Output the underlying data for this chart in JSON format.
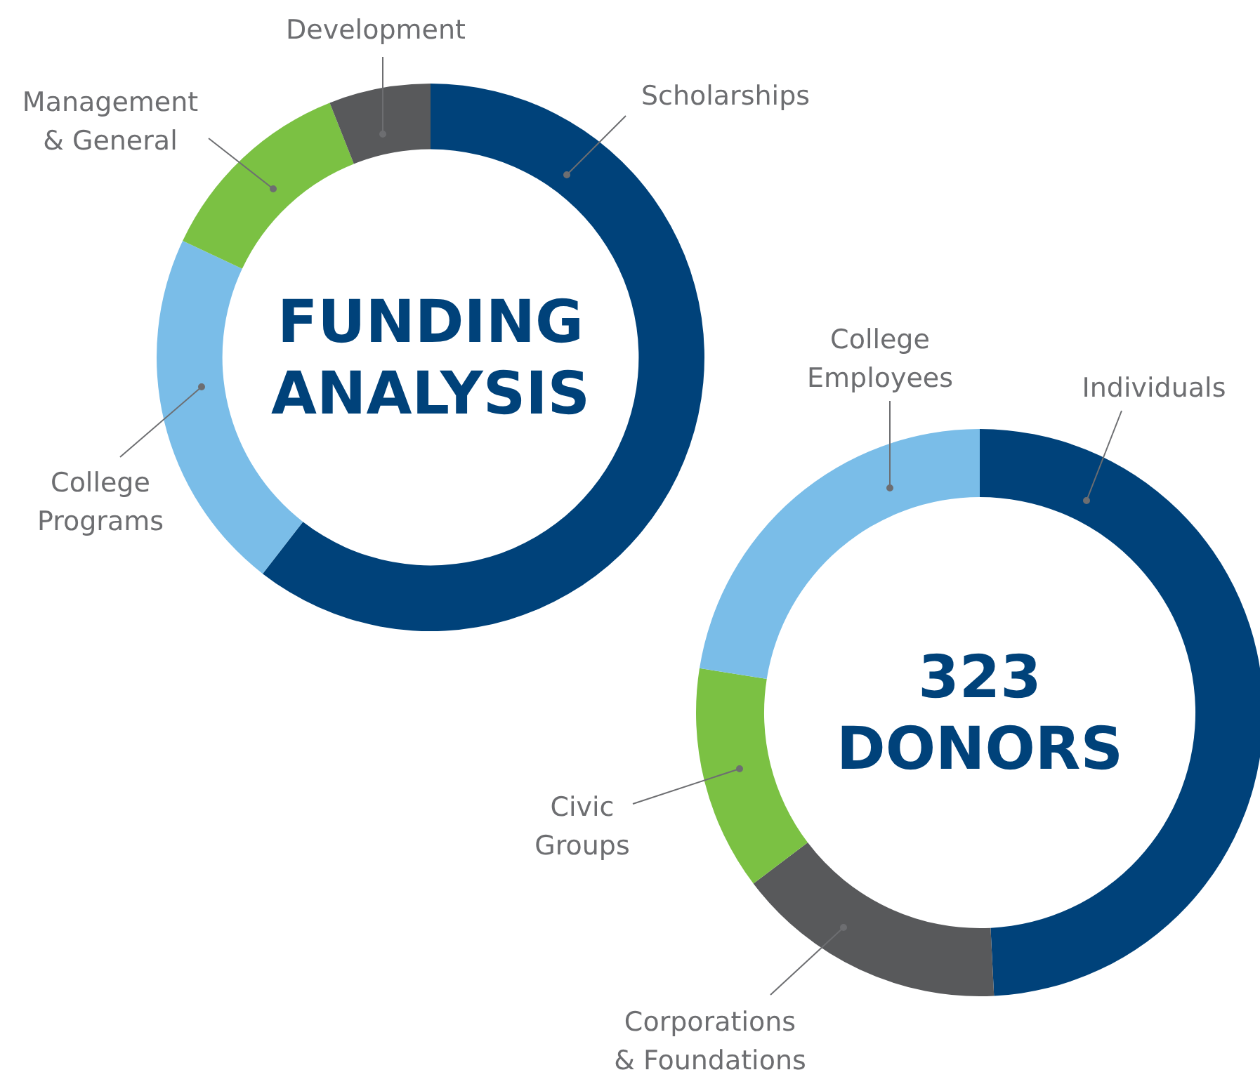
{
  "chart_data": [
    {
      "type": "donut",
      "title": "FUNDING ANALYSIS",
      "categories": [
        "Scholarships",
        "College Programs",
        "Management & General",
        "Development"
      ],
      "values": [
        60.5,
        21.5,
        12,
        6
      ],
      "colors": [
        "#00427a",
        "#7abde8",
        "#7bc143",
        "#58595b"
      ]
    },
    {
      "type": "donut",
      "title": "323 DONORS",
      "categories": [
        "Individuals",
        "Corporations & Foundations",
        "Civic Groups",
        "College Employees"
      ],
      "values": [
        49.2,
        15.5,
        12.8,
        22.5
      ],
      "colors": [
        "#00427a",
        "#58595b",
        "#7bc143",
        "#7abde8"
      ]
    }
  ]
}
